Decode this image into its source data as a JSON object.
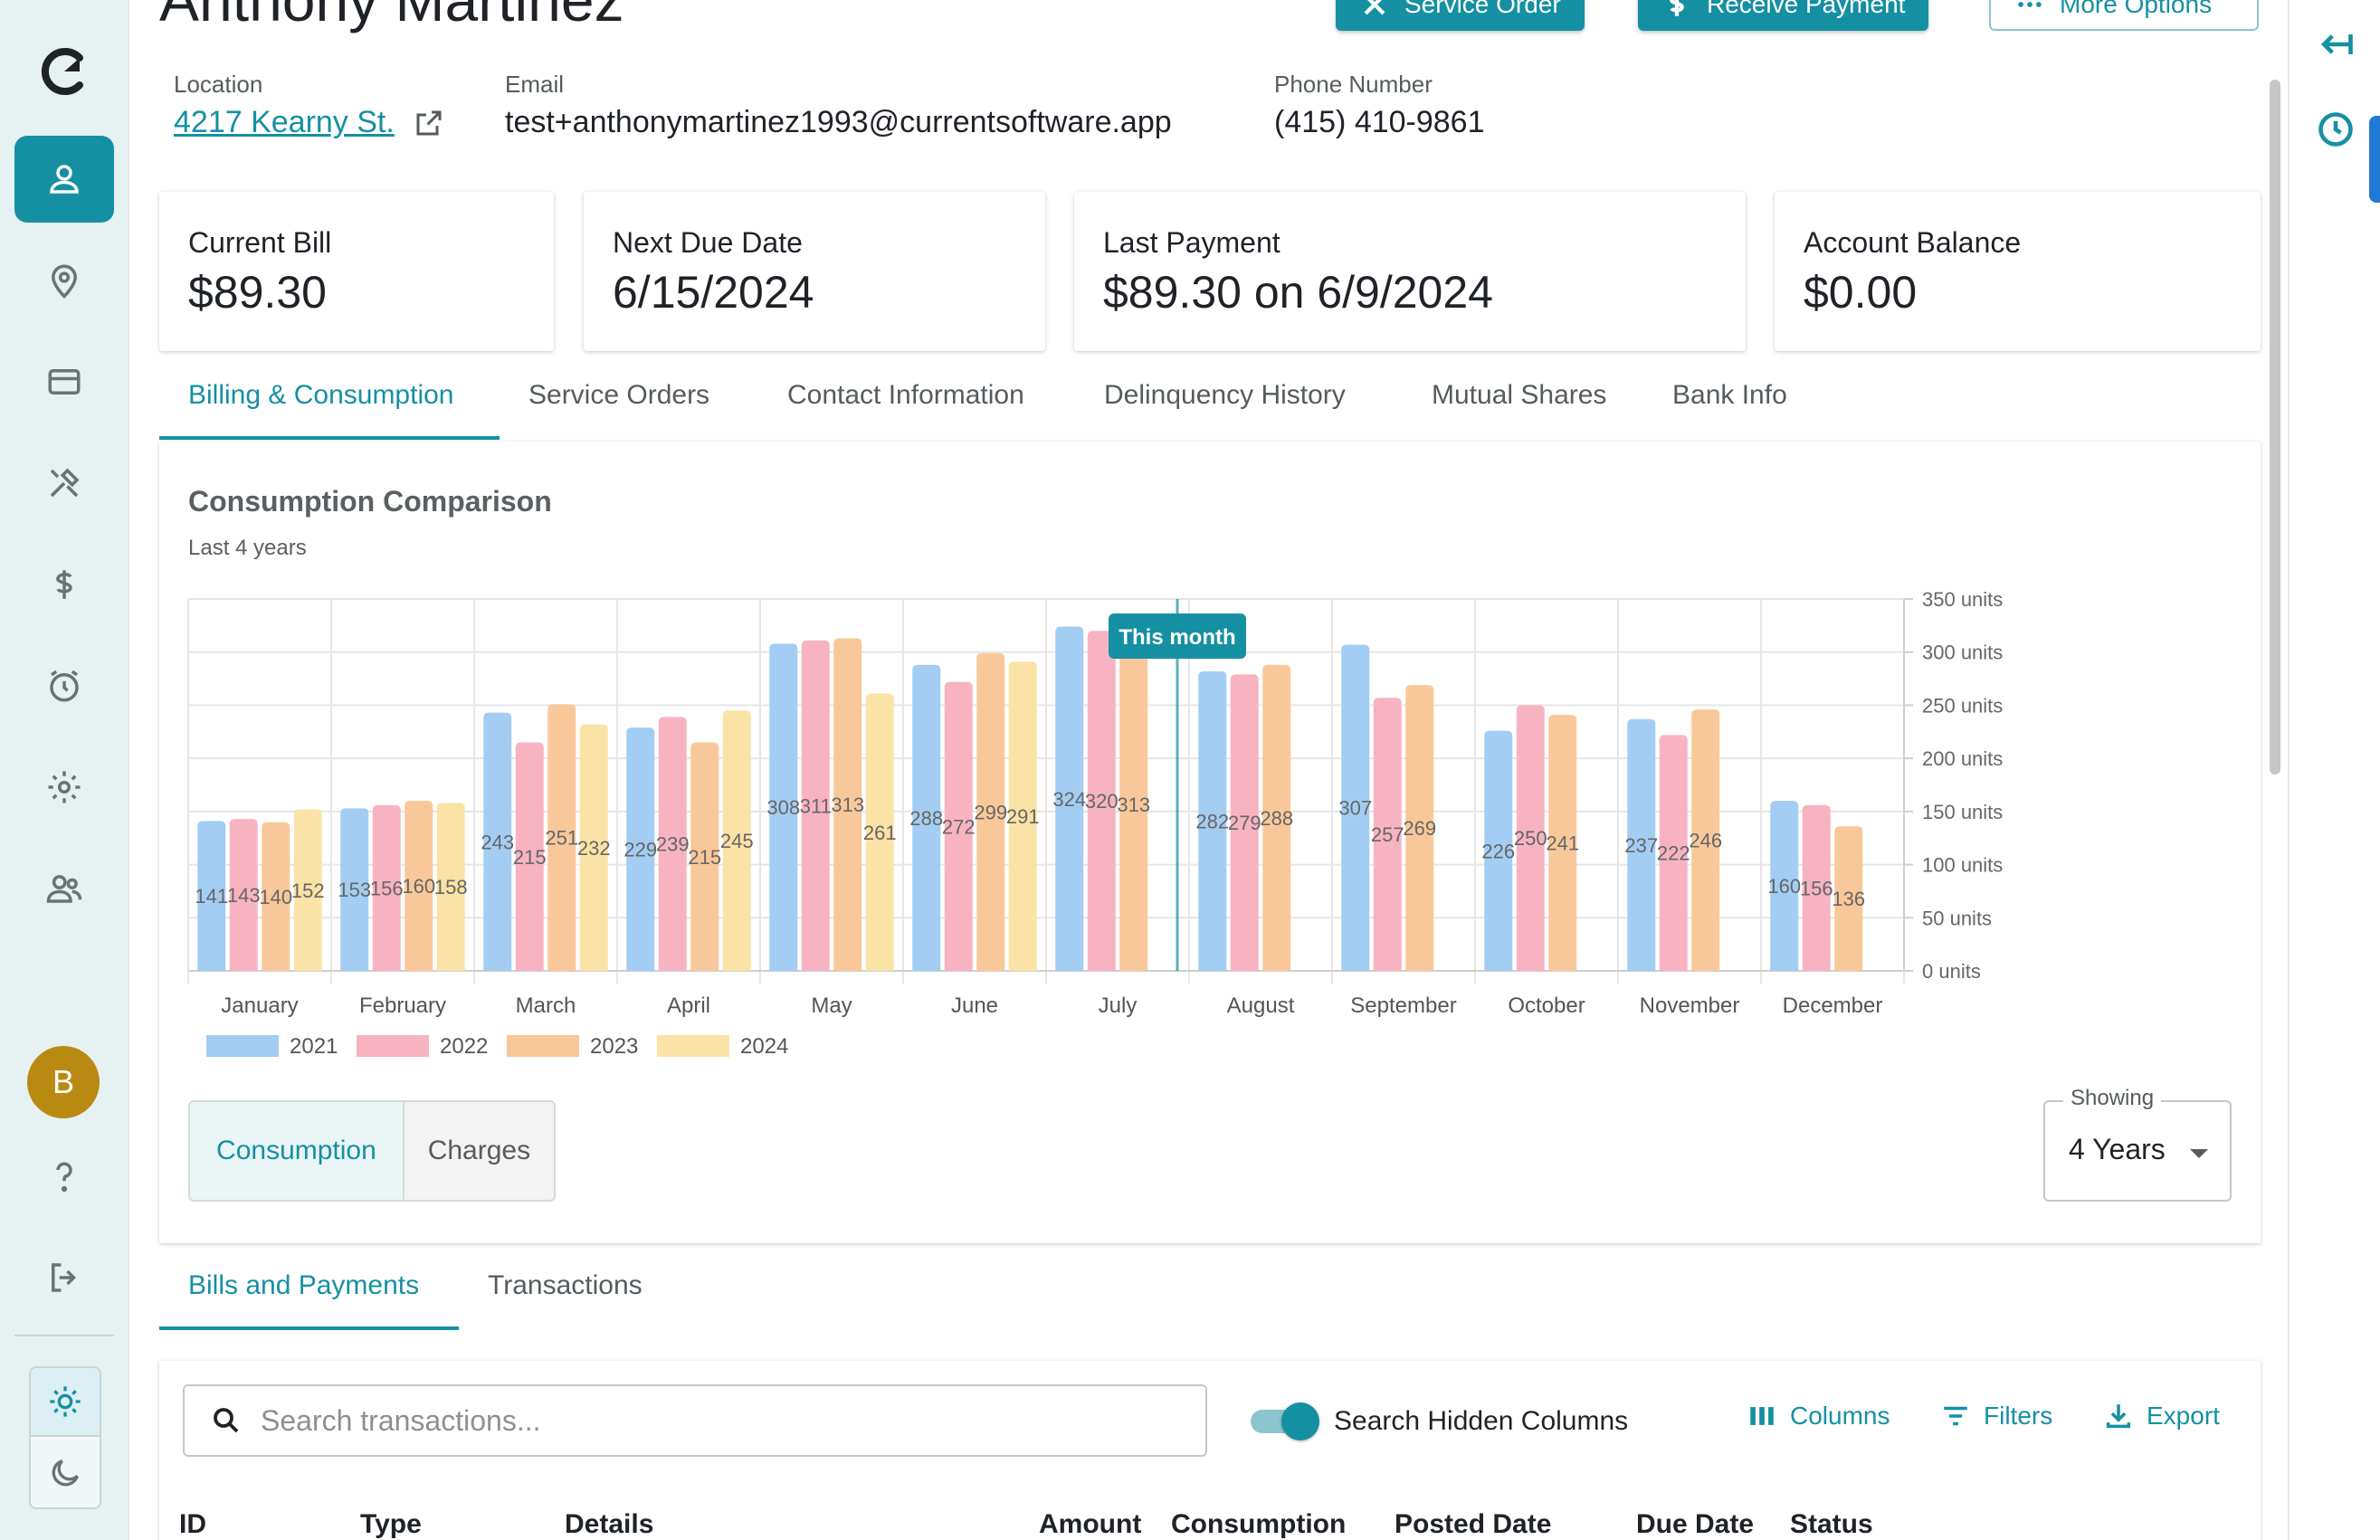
{
  "nav": {
    "avatar_initial": "B",
    "items": [
      {
        "icon": "person-icon",
        "active": true
      },
      {
        "icon": "map-pin-icon"
      },
      {
        "icon": "credit-card-icon"
      },
      {
        "icon": "tools-icon"
      },
      {
        "icon": "dollar-icon"
      },
      {
        "icon": "alarm-icon"
      },
      {
        "icon": "gear-icon"
      },
      {
        "icon": "users-icon"
      },
      {
        "icon": "help-icon"
      },
      {
        "icon": "logout-icon"
      }
    ]
  },
  "header": {
    "customer_name": "Anthony Martinez",
    "buttons": {
      "service_order": "Service Order",
      "receive_payment": "Receive Payment",
      "more_options": "More Options"
    }
  },
  "info": {
    "location_label": "Location",
    "location_value": "4217 Kearny St.",
    "email_label": "Email",
    "email_value": "test+anthonymartinez1993@currentsoftware.app",
    "phone_label": "Phone Number",
    "phone_value": "(415) 410-9861"
  },
  "cards": [
    {
      "label": "Current Bill",
      "value": "$89.30"
    },
    {
      "label": "Next Due Date",
      "value": "6/15/2024"
    },
    {
      "label": "Last Payment",
      "value": "$89.30 on 6/9/2024"
    },
    {
      "label": "Account Balance",
      "value": "$0.00"
    }
  ],
  "tabs": [
    "Billing & Consumption",
    "Service Orders",
    "Contact Information",
    "Delinquency History",
    "Mutual Shares",
    "Bank Info"
  ],
  "chart_panel": {
    "title": "Consumption Comparison",
    "subtitle": "Last 4 years",
    "toggle_consumption": "Consumption",
    "toggle_charges": "Charges",
    "showing_label": "Showing",
    "showing_value": "4 Years"
  },
  "chart_data": {
    "type": "bar",
    "categories": [
      "January",
      "February",
      "March",
      "April",
      "May",
      "June",
      "July",
      "August",
      "September",
      "October",
      "November",
      "December"
    ],
    "series": [
      {
        "name": "2021",
        "color": "#a3cdf3",
        "values": [
          141,
          153,
          243,
          229,
          308,
          288,
          324,
          282,
          307,
          226,
          237,
          160
        ]
      },
      {
        "name": "2022",
        "color": "#f8b3c3",
        "values": [
          143,
          156,
          215,
          239,
          311,
          272,
          320,
          279,
          257,
          250,
          222,
          156
        ]
      },
      {
        "name": "2023",
        "color": "#f9c89a",
        "values": [
          140,
          160,
          251,
          215,
          313,
          299,
          313,
          288,
          269,
          241,
          246,
          136
        ]
      },
      {
        "name": "2024",
        "color": "#fbe2a6",
        "values": [
          152,
          158,
          232,
          245,
          261,
          291,
          null,
          null,
          null,
          null,
          null,
          null
        ]
      }
    ],
    "y_ticks": [
      "0 units",
      "50 units",
      "100 units",
      "150 units",
      "200 units",
      "250 units",
      "300 units",
      "350 units"
    ],
    "ylim": [
      0,
      350
    ],
    "marker": {
      "category": "July",
      "label": "This month",
      "color": "#1590a3"
    },
    "legend_position": "bottom-left",
    "grid": true
  },
  "lower_tabs": [
    "Bills and Payments",
    "Transactions"
  ],
  "transactions": {
    "search_placeholder": "Search transactions...",
    "toggle_label": "Search Hidden Columns",
    "columns_btn": "Columns",
    "filters_btn": "Filters",
    "export_btn": "Export",
    "headers": [
      "ID",
      "Type",
      "Details",
      "Amount",
      "Consumption",
      "Posted Date",
      "Due Date",
      "Status"
    ]
  }
}
